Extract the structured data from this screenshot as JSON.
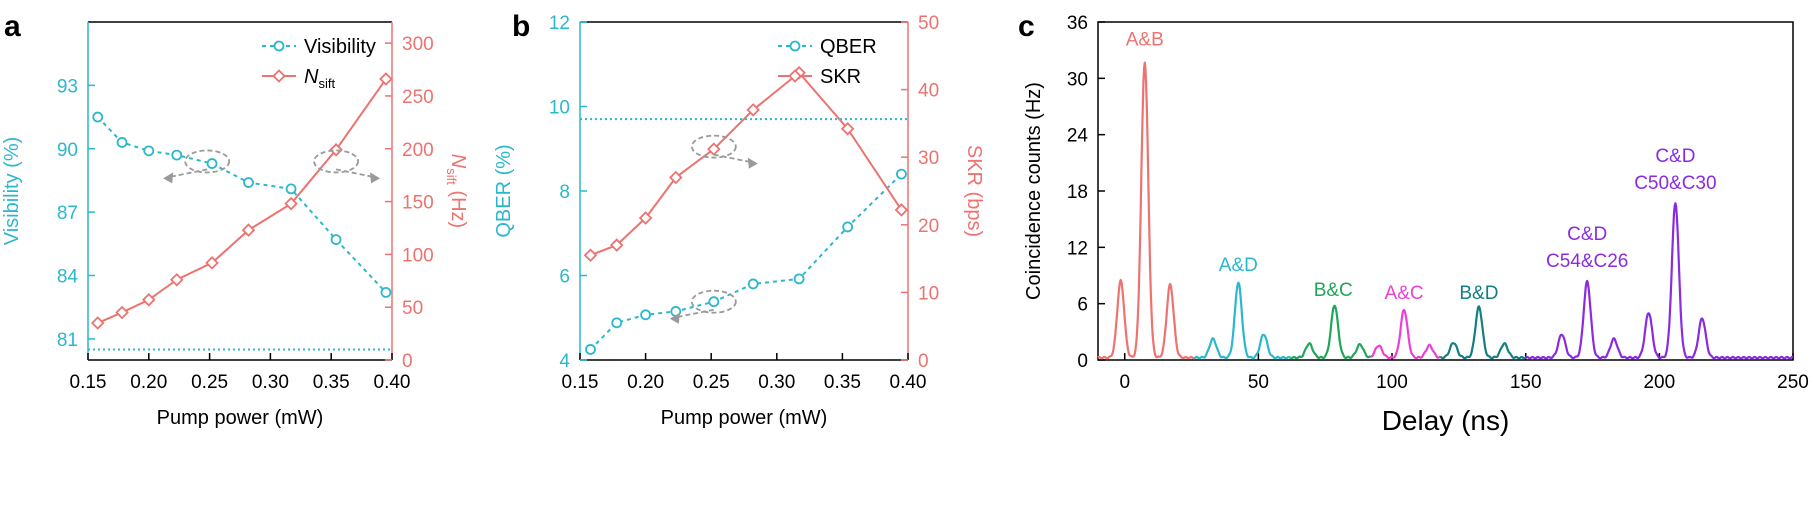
{
  "colors": {
    "cyan": "#2bb8cc",
    "red": "#ec7370",
    "green": "#1fa65a",
    "magenta": "#ec3fd6",
    "teal": "#137f80",
    "purple": "#8a2be2",
    "gray": "#9a9a9a",
    "axis": "#000000"
  },
  "chart_data": [
    {
      "panel_label": "a",
      "type": "line",
      "xlabel": "Pump power (mW)",
      "ylabel_left": "Visibility (%)",
      "ylabel_right": "N_sift (Hz)",
      "ylabel_right_main": "N",
      "ylabel_right_sub": "sift",
      "ylabel_right_unit": " (Hz)",
      "xlim": [
        0.15,
        0.4
      ],
      "ylim_left": [
        80,
        96
      ],
      "ylim_right": [
        0,
        320
      ],
      "xticks": [
        0.15,
        0.2,
        0.25,
        0.3,
        0.35,
        0.4
      ],
      "xtick_labels": [
        "0.15",
        "0.20",
        "0.25",
        "0.30",
        "0.35",
        "0.40"
      ],
      "yticks_left": [
        81,
        84,
        87,
        90,
        93
      ],
      "yticks_left_labels": [
        "81",
        "84",
        "87",
        "90",
        "93"
      ],
      "yticks_right": [
        0,
        50,
        100,
        150,
        200,
        250,
        300
      ],
      "yticks_right_labels": [
        "0",
        "50",
        "100",
        "150",
        "200",
        "250",
        "300"
      ],
      "legend_position": "top-right",
      "legend": [
        {
          "name": "Visibility",
          "name_sub": ""
        },
        {
          "name": "N",
          "name_sub": "sift"
        }
      ],
      "series": [
        {
          "name": "Visibility",
          "axis": "left",
          "style": "dotted-circle",
          "x": [
            0.158,
            0.178,
            0.2,
            0.223,
            0.252,
            0.282,
            0.317,
            0.354,
            0.395
          ],
          "values": [
            91.5,
            90.3,
            89.9,
            89.7,
            89.3,
            88.4,
            88.1,
            85.7,
            83.2
          ]
        },
        {
          "name": "N_sift",
          "axis": "right",
          "style": "solid-diamond",
          "x": [
            0.158,
            0.178,
            0.2,
            0.223,
            0.252,
            0.282,
            0.317,
            0.354,
            0.395
          ],
          "values": [
            35,
            45,
            57,
            76,
            92,
            123,
            148,
            199,
            266
          ]
        }
      ],
      "reference_line": {
        "axis": "left",
        "value": 80.5,
        "style": "dotted"
      },
      "arrows": [
        {
          "cx": 0.248,
          "cy_left": 89.4,
          "direction": "left"
        },
        {
          "cx": 0.354,
          "cy_left": 89.4,
          "direction": "right"
        }
      ]
    },
    {
      "panel_label": "b",
      "type": "line",
      "xlabel": "Pump power (mW)",
      "ylabel_left": "QBER (%)",
      "ylabel_right": "SKR (bps)",
      "xlim": [
        0.15,
        0.4
      ],
      "ylim_left": [
        4,
        12
      ],
      "ylim_right": [
        0,
        50
      ],
      "xticks": [
        0.15,
        0.2,
        0.25,
        0.3,
        0.35,
        0.4
      ],
      "xtick_labels": [
        "0.15",
        "0.20",
        "0.25",
        "0.30",
        "0.35",
        "0.40"
      ],
      "yticks_left": [
        4,
        6,
        8,
        10,
        12
      ],
      "yticks_left_labels": [
        "4",
        "6",
        "8",
        "10",
        "12"
      ],
      "yticks_right": [
        0,
        10,
        20,
        30,
        40,
        50
      ],
      "yticks_right_labels": [
        "0",
        "10",
        "20",
        "30",
        "40",
        "50"
      ],
      "legend_position": "top-right",
      "legend": [
        {
          "name": "QBER",
          "name_sub": ""
        },
        {
          "name": "SKR",
          "name_sub": ""
        }
      ],
      "series": [
        {
          "name": "QBER",
          "axis": "left",
          "style": "dotted-circle",
          "x": [
            0.158,
            0.178,
            0.2,
            0.223,
            0.252,
            0.282,
            0.317,
            0.354,
            0.395
          ],
          "values": [
            4.25,
            4.88,
            5.07,
            5.15,
            5.38,
            5.8,
            5.92,
            7.15,
            8.4
          ]
        },
        {
          "name": "SKR",
          "axis": "right",
          "style": "solid-diamond",
          "x": [
            0.158,
            0.178,
            0.2,
            0.223,
            0.252,
            0.282,
            0.317,
            0.354,
            0.395
          ],
          "values": [
            15.5,
            17,
            21,
            27,
            31.2,
            37,
            42.5,
            34.2,
            22.2
          ]
        }
      ],
      "reference_line": {
        "axis": "left",
        "value": 9.7,
        "style": "dotted"
      },
      "arrows": [
        {
          "cx": 0.252,
          "cy_left": 9.05,
          "direction": "right"
        },
        {
          "cx": 0.252,
          "cy_left": 5.38,
          "direction": "left"
        }
      ]
    },
    {
      "panel_label": "c",
      "type": "line",
      "xlabel": "Delay (ns)",
      "ylabel": "Coincidence counts (Hz)",
      "xlim": [
        -10,
        250
      ],
      "ylim": [
        0,
        36
      ],
      "xticks": [
        0,
        50,
        100,
        150,
        200,
        250
      ],
      "xtick_labels": [
        "0",
        "50",
        "100",
        "150",
        "200",
        "250"
      ],
      "yticks": [
        0,
        6,
        12,
        18,
        24,
        30,
        36
      ],
      "ytick_labels": [
        "0",
        "6",
        "12",
        "18",
        "24",
        "30",
        "36"
      ],
      "peaks": [
        {
          "group": "A&B",
          "color": "red",
          "center": -1.5,
          "height": 8.2
        },
        {
          "group": "A&B",
          "color": "red",
          "center": 7.5,
          "height": 31.5
        },
        {
          "group": "A&B",
          "color": "red",
          "center": 17,
          "height": 7.8
        },
        {
          "group": "A&D",
          "color": "cyan",
          "center": 33,
          "height": 2
        },
        {
          "group": "A&D",
          "color": "cyan",
          "center": 42.5,
          "height": 8
        },
        {
          "group": "A&D",
          "color": "cyan",
          "center": 52,
          "height": 2.5
        },
        {
          "group": "B&C",
          "color": "green",
          "center": 69,
          "height": 1.5
        },
        {
          "group": "B&C",
          "color": "green",
          "center": 78.5,
          "height": 5.6
        },
        {
          "group": "B&C",
          "color": "green",
          "center": 88,
          "height": 1.4
        },
        {
          "group": "A&C",
          "color": "magenta",
          "center": 95,
          "height": 1.3
        },
        {
          "group": "A&C",
          "color": "magenta",
          "center": 104.5,
          "height": 5.1
        },
        {
          "group": "A&C",
          "color": "magenta",
          "center": 114,
          "height": 1.3
        },
        {
          "group": "B&D",
          "color": "teal",
          "center": 123,
          "height": 1.6
        },
        {
          "group": "B&D",
          "color": "teal",
          "center": 132.5,
          "height": 5.4
        },
        {
          "group": "B&D",
          "color": "teal",
          "center": 142,
          "height": 1.5
        },
        {
          "group": "C&D",
          "color": "purple",
          "center": 163.5,
          "height": 2.5
        },
        {
          "group": "C&D",
          "color": "purple",
          "center": 173,
          "height": 8.1
        },
        {
          "group": "C&D",
          "color": "purple",
          "center": 183,
          "height": 2
        },
        {
          "group": "C&D",
          "color": "purple",
          "center": 196,
          "height": 4.8
        },
        {
          "group": "C&D",
          "color": "purple",
          "center": 206,
          "height": 16.5
        },
        {
          "group": "C&D",
          "color": "purple",
          "center": 216,
          "height": 4.2
        }
      ],
      "annotations": [
        {
          "text": "A&B",
          "color": "red",
          "x": 7.5,
          "y": 33.5
        },
        {
          "text": "A&D",
          "color": "cyan",
          "x": 42.5,
          "y": 9.5
        },
        {
          "text": "B&C",
          "color": "green",
          "x": 78,
          "y": 6.8
        },
        {
          "text": "A&C",
          "color": "magenta",
          "x": 104.5,
          "y": 6.5
        },
        {
          "text": "B&D",
          "color": "teal",
          "x": 132.5,
          "y": 6.5
        },
        {
          "text": "C&D",
          "color": "purple",
          "x": 173,
          "y": 12.8
        },
        {
          "text": "C54&C26",
          "color": "purple",
          "x": 173,
          "y": 9.9
        },
        {
          "text": "C&D",
          "color": "purple",
          "x": 206,
          "y": 21.1
        },
        {
          "text": "C50&C30",
          "color": "purple",
          "x": 206,
          "y": 18.2
        }
      ]
    }
  ]
}
